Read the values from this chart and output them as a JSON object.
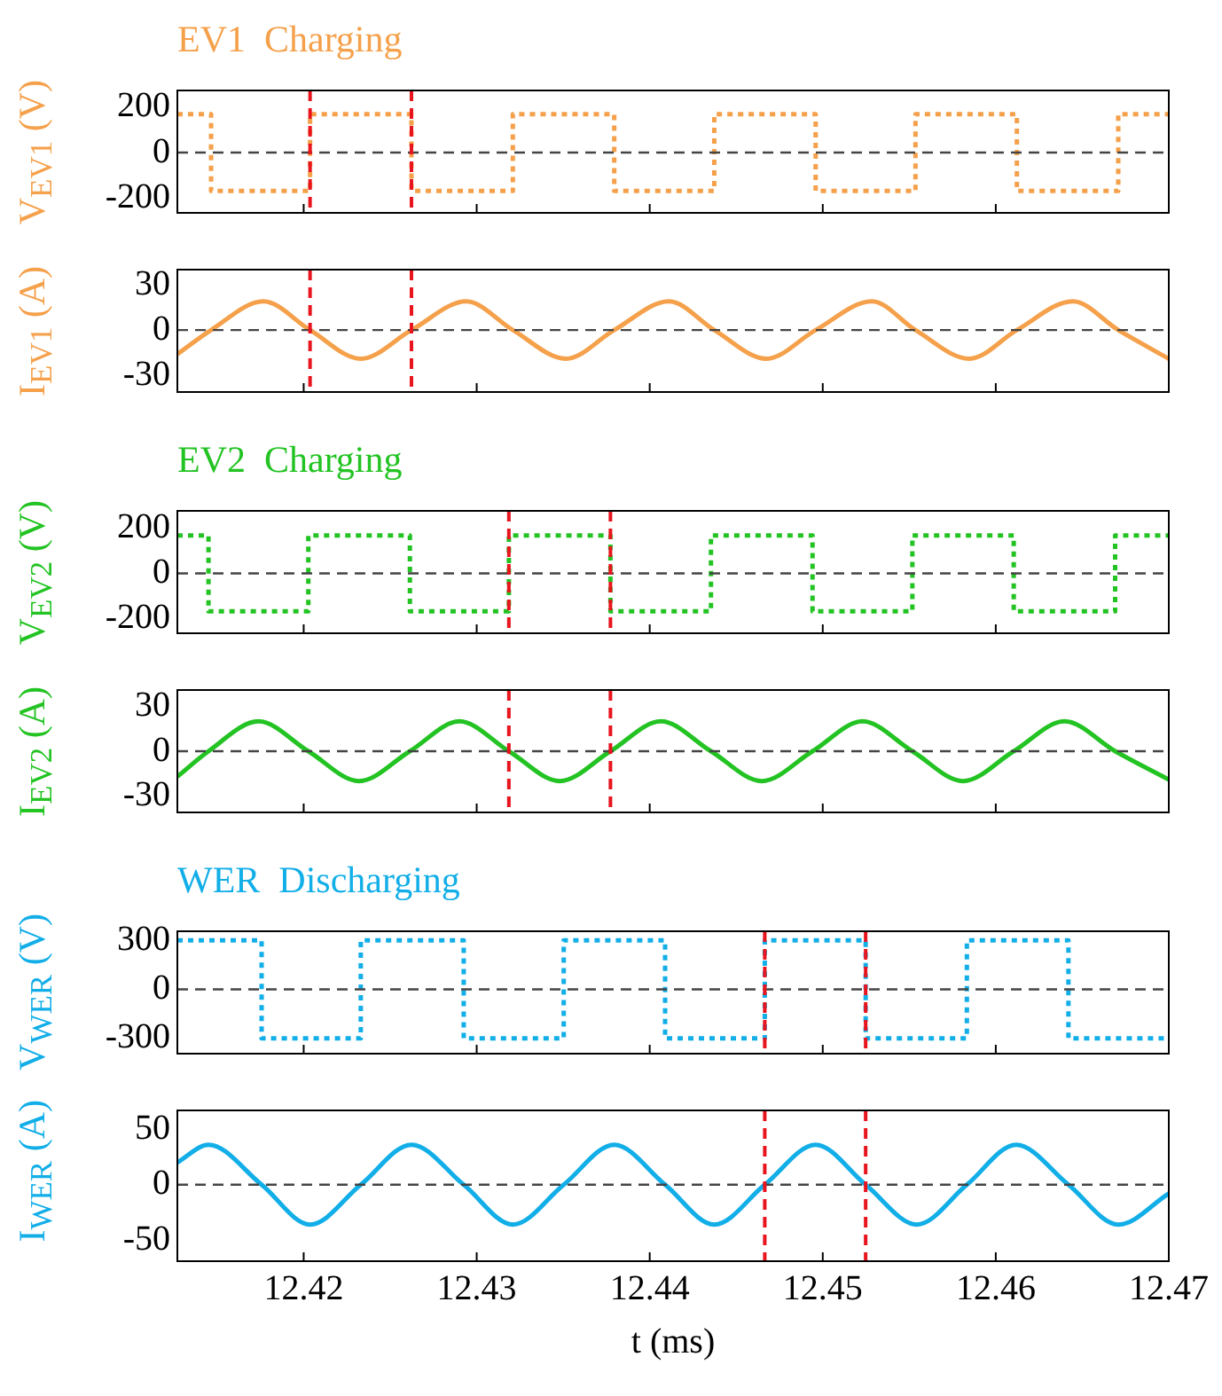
{
  "chart_data": [
    {
      "type": "step",
      "title": "EV1  Charging",
      "ylabel": "V$_{EV1}$ (V)",
      "xlim": [
        12.4127,
        12.47
      ],
      "xticks": [
        12.42,
        12.43,
        12.44,
        12.45,
        12.46,
        12.47
      ],
      "ylim": [
        -262,
        270
      ],
      "yticks": [
        -200,
        0,
        200
      ],
      "tick_labels": "y",
      "line_style": "dotted",
      "series": [
        {
          "color": "#f5a04a",
          "x": [
            12.4127,
            12.41465,
            12.42037,
            12.42623,
            12.43209,
            12.43795,
            12.44373,
            12.44959,
            12.45536,
            12.46122,
            12.46708,
            12.47
          ],
          "values": [
            167,
            -167,
            167,
            -167,
            167,
            -167,
            167,
            -167,
            167,
            -167,
            167,
            167
          ]
        }
      ],
      "ref_lines": [
        {
          "axis": "y",
          "value": 0,
          "color": "#444444",
          "line_style": "dashed"
        },
        {
          "axis": "x",
          "value": 12.42037,
          "color": "#e8141e",
          "line_style": "dashed"
        },
        {
          "axis": "x",
          "value": 12.42623,
          "color": "#e8141e",
          "line_style": "dashed"
        }
      ]
    },
    {
      "type": "line",
      "ylabel": "I$_{EV1}$ (A)",
      "xlim": [
        12.4127,
        12.47
      ],
      "xticks": [
        12.42,
        12.43,
        12.44,
        12.45,
        12.46,
        12.47
      ],
      "ylim": [
        -41,
        40
      ],
      "yticks": [
        -30,
        0,
        30
      ],
      "tick_labels": "y",
      "line_style": "solid",
      "series": [
        {
          "color": "#f5a04a",
          "x": [
            12.4127,
            12.41465,
            12.41767,
            12.42037,
            12.4233,
            12.42623,
            12.42939,
            12.43209,
            12.43516,
            12.43795,
            12.44111,
            12.44373,
            12.44675,
            12.44959,
            12.45284,
            12.45536,
            12.45848,
            12.46122,
            12.46445,
            12.46708,
            12.47
          ],
          "values": [
            -16,
            0,
            19,
            0,
            -19,
            0,
            19,
            0,
            -19,
            0,
            19,
            0,
            -19,
            0,
            19,
            0,
            -19,
            0,
            19,
            0,
            -19
          ]
        }
      ],
      "ref_lines": [
        {
          "axis": "y",
          "value": 0,
          "color": "#444444",
          "line_style": "dashed"
        },
        {
          "axis": "x",
          "value": 12.42037,
          "color": "#e8141e",
          "line_style": "dashed"
        },
        {
          "axis": "x",
          "value": 12.42623,
          "color": "#e8141e",
          "line_style": "dashed"
        }
      ]
    },
    {
      "type": "step",
      "title": "EV2  Charging",
      "ylabel": "V$_{EV2}$ (V)",
      "xlim": [
        12.4127,
        12.47
      ],
      "xticks": [
        12.42,
        12.43,
        12.44,
        12.45,
        12.46,
        12.47
      ],
      "ylim": [
        -264,
        276
      ],
      "yticks": [
        -200,
        0,
        200
      ],
      "tick_labels": "y",
      "line_style": "dotted",
      "series": [
        {
          "color": "#22c322",
          "x": [
            12.4127,
            12.4145,
            12.42027,
            12.42614,
            12.43186,
            12.43773,
            12.44354,
            12.44941,
            12.45518,
            12.46104,
            12.4669,
            12.47
          ],
          "values": [
            167,
            -167,
            167,
            -167,
            167,
            -167,
            167,
            -167,
            167,
            -167,
            167,
            167
          ]
        }
      ],
      "ref_lines": [
        {
          "axis": "y",
          "value": 0,
          "color": "#444444",
          "line_style": "dashed"
        },
        {
          "axis": "x",
          "value": 12.43186,
          "color": "#e8141e",
          "line_style": "dashed"
        },
        {
          "axis": "x",
          "value": 12.43773,
          "color": "#e8141e",
          "line_style": "dashed"
        }
      ]
    },
    {
      "type": "line",
      "ylabel": "I$_{EV2}$ (A)",
      "xlim": [
        12.4127,
        12.47
      ],
      "xticks": [
        12.42,
        12.43,
        12.44,
        12.45,
        12.46,
        12.47
      ],
      "ylim": [
        -41,
        41
      ],
      "yticks": [
        -30,
        0,
        30
      ],
      "tick_labels": "y",
      "line_style": "solid",
      "series": [
        {
          "color": "#22c322",
          "x": [
            12.4127,
            12.4145,
            12.41739,
            12.42027,
            12.4232,
            12.42614,
            12.429,
            12.43186,
            12.4348,
            12.43773,
            12.44064,
            12.44354,
            12.44648,
            12.44941,
            12.4523,
            12.45518,
            12.45811,
            12.46104,
            12.46397,
            12.4669,
            12.47
          ],
          "values": [
            -17,
            0,
            20,
            0,
            -20,
            0,
            20,
            0,
            -20,
            0,
            20,
            0,
            -20,
            0,
            20,
            0,
            -20,
            0,
            20,
            0,
            -19
          ]
        }
      ],
      "ref_lines": [
        {
          "axis": "y",
          "value": 0,
          "color": "#444444",
          "line_style": "dashed"
        },
        {
          "axis": "x",
          "value": 12.43186,
          "color": "#e8141e",
          "line_style": "dashed"
        },
        {
          "axis": "x",
          "value": 12.43773,
          "color": "#e8141e",
          "line_style": "dashed"
        }
      ]
    },
    {
      "type": "step",
      "title": "WER  Discharging",
      "ylabel": "V$_{WER}$ (V)",
      "xlim": [
        12.4127,
        12.47
      ],
      "xticks": [
        12.42,
        12.43,
        12.44,
        12.45,
        12.46,
        12.47
      ],
      "ylim": [
        -394,
        356
      ],
      "yticks": [
        -300,
        0,
        300
      ],
      "tick_labels": "y",
      "line_style": "dotted",
      "series": [
        {
          "color": "#12aee8",
          "x": [
            12.4127,
            12.41757,
            12.4233,
            12.42925,
            12.43503,
            12.44089,
            12.44665,
            12.45248,
            12.45833,
            12.4642,
            12.47
          ],
          "values": [
            300,
            -300,
            300,
            -300,
            300,
            -300,
            300,
            -300,
            300,
            -300,
            -300
          ]
        }
      ],
      "ref_lines": [
        {
          "axis": "y",
          "value": 0,
          "color": "#444444",
          "line_style": "dashed"
        },
        {
          "axis": "x",
          "value": 12.44665,
          "color": "#e8141e",
          "line_style": "dashed"
        },
        {
          "axis": "x",
          "value": 12.45248,
          "color": "#e8141e",
          "line_style": "dashed"
        }
      ]
    },
    {
      "type": "line",
      "ylabel": "I$_{WER}$ (A)",
      "xlabel": "t (ms)",
      "xlim": [
        12.4127,
        12.47
      ],
      "xticks": [
        12.42,
        12.43,
        12.44,
        12.45,
        12.46,
        12.47
      ],
      "ylim": [
        -69,
        67
      ],
      "yticks": [
        -50,
        0,
        50
      ],
      "line_style": "solid",
      "series": [
        {
          "color": "#12aee8",
          "x": [
            12.4127,
            12.4145,
            12.41757,
            12.42037,
            12.4233,
            12.42623,
            12.42925,
            12.43209,
            12.43503,
            12.43795,
            12.44089,
            12.44373,
            12.44665,
            12.44959,
            12.45248,
            12.45544,
            12.45833,
            12.46118,
            12.4642,
            12.46708,
            12.47
          ],
          "values": [
            20,
            36,
            0,
            -36,
            0,
            36,
            0,
            -36,
            0,
            36,
            0,
            -36,
            0,
            36,
            0,
            -36,
            0,
            36,
            0,
            -36,
            -8
          ]
        }
      ],
      "ref_lines": [
        {
          "axis": "y",
          "value": 0,
          "color": "#444444",
          "line_style": "dashed"
        },
        {
          "axis": "x",
          "value": 12.44665,
          "color": "#e8141e",
          "line_style": "dashed"
        },
        {
          "axis": "x",
          "value": 12.45248,
          "color": "#e8141e",
          "line_style": "dashed"
        }
      ]
    }
  ]
}
